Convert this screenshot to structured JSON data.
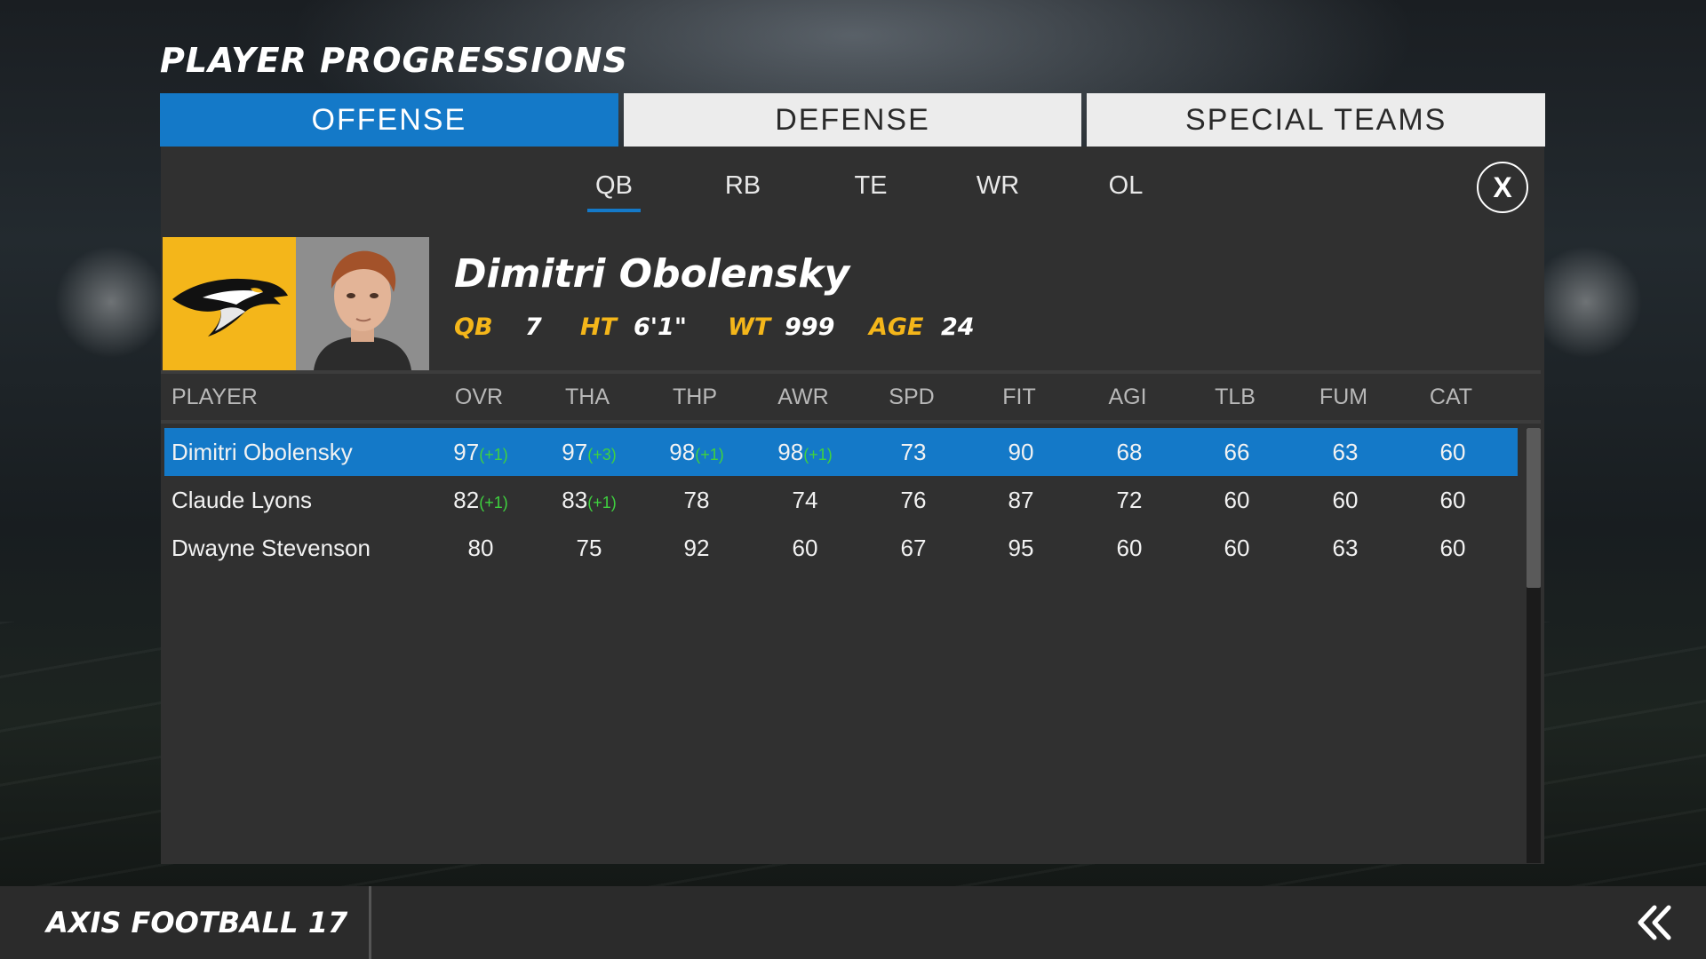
{
  "page": {
    "title": "PLAYER PROGRESSIONS"
  },
  "tabs": [
    {
      "label": "OFFENSE",
      "active": true
    },
    {
      "label": "DEFENSE",
      "active": false
    },
    {
      "label": "SPECIAL TEAMS",
      "active": false
    }
  ],
  "positions": [
    {
      "label": "QB",
      "active": true
    },
    {
      "label": "RB",
      "active": false
    },
    {
      "label": "TE",
      "active": false
    },
    {
      "label": "WR",
      "active": false
    },
    {
      "label": "OL",
      "active": false
    }
  ],
  "close_label": "X",
  "player": {
    "name": "Dimitri Obolensky",
    "position": "QB",
    "number": "7",
    "ht_label": "HT",
    "height": "6'1\"",
    "wt_label": "WT",
    "weight": "999",
    "age_label": "AGE",
    "age": "24",
    "team_logo_icon": "hawk-logo-icon",
    "portrait": "player-portrait"
  },
  "table": {
    "columns": [
      "PLAYER",
      "OVR",
      "THA",
      "THP",
      "AWR",
      "SPD",
      "FIT",
      "AGI",
      "TLB",
      "FUM",
      "CAT"
    ],
    "rows": [
      {
        "name": "Dimitri Obolensky",
        "selected": true,
        "stats": [
          {
            "value": "97",
            "delta": "(+1)"
          },
          {
            "value": "97",
            "delta": "(+3)"
          },
          {
            "value": "98",
            "delta": "(+1)"
          },
          {
            "value": "98",
            "delta": "(+1)"
          },
          {
            "value": "73",
            "delta": ""
          },
          {
            "value": "90",
            "delta": ""
          },
          {
            "value": "68",
            "delta": ""
          },
          {
            "value": "66",
            "delta": ""
          },
          {
            "value": "63",
            "delta": ""
          },
          {
            "value": "60",
            "delta": ""
          }
        ]
      },
      {
        "name": "Claude Lyons",
        "selected": false,
        "stats": [
          {
            "value": "82",
            "delta": "(+1)"
          },
          {
            "value": "83",
            "delta": "(+1)"
          },
          {
            "value": "78",
            "delta": ""
          },
          {
            "value": "74",
            "delta": ""
          },
          {
            "value": "76",
            "delta": ""
          },
          {
            "value": "87",
            "delta": ""
          },
          {
            "value": "72",
            "delta": ""
          },
          {
            "value": "60",
            "delta": ""
          },
          {
            "value": "60",
            "delta": ""
          },
          {
            "value": "60",
            "delta": ""
          }
        ]
      },
      {
        "name": "Dwayne Stevenson",
        "selected": false,
        "stats": [
          {
            "value": "80",
            "delta": ""
          },
          {
            "value": "75",
            "delta": ""
          },
          {
            "value": "92",
            "delta": ""
          },
          {
            "value": "60",
            "delta": ""
          },
          {
            "value": "67",
            "delta": ""
          },
          {
            "value": "95",
            "delta": ""
          },
          {
            "value": "60",
            "delta": ""
          },
          {
            "value": "60",
            "delta": ""
          },
          {
            "value": "63",
            "delta": ""
          },
          {
            "value": "60",
            "delta": ""
          }
        ]
      }
    ]
  },
  "footer": {
    "title": "AXIS FOOTBALL 17",
    "back_icon": "double-chevron-left-icon"
  },
  "colors": {
    "accent": "#1479c8",
    "gold": "#f4b61a",
    "delta_green": "#3fd13f",
    "panel": "#303030"
  }
}
